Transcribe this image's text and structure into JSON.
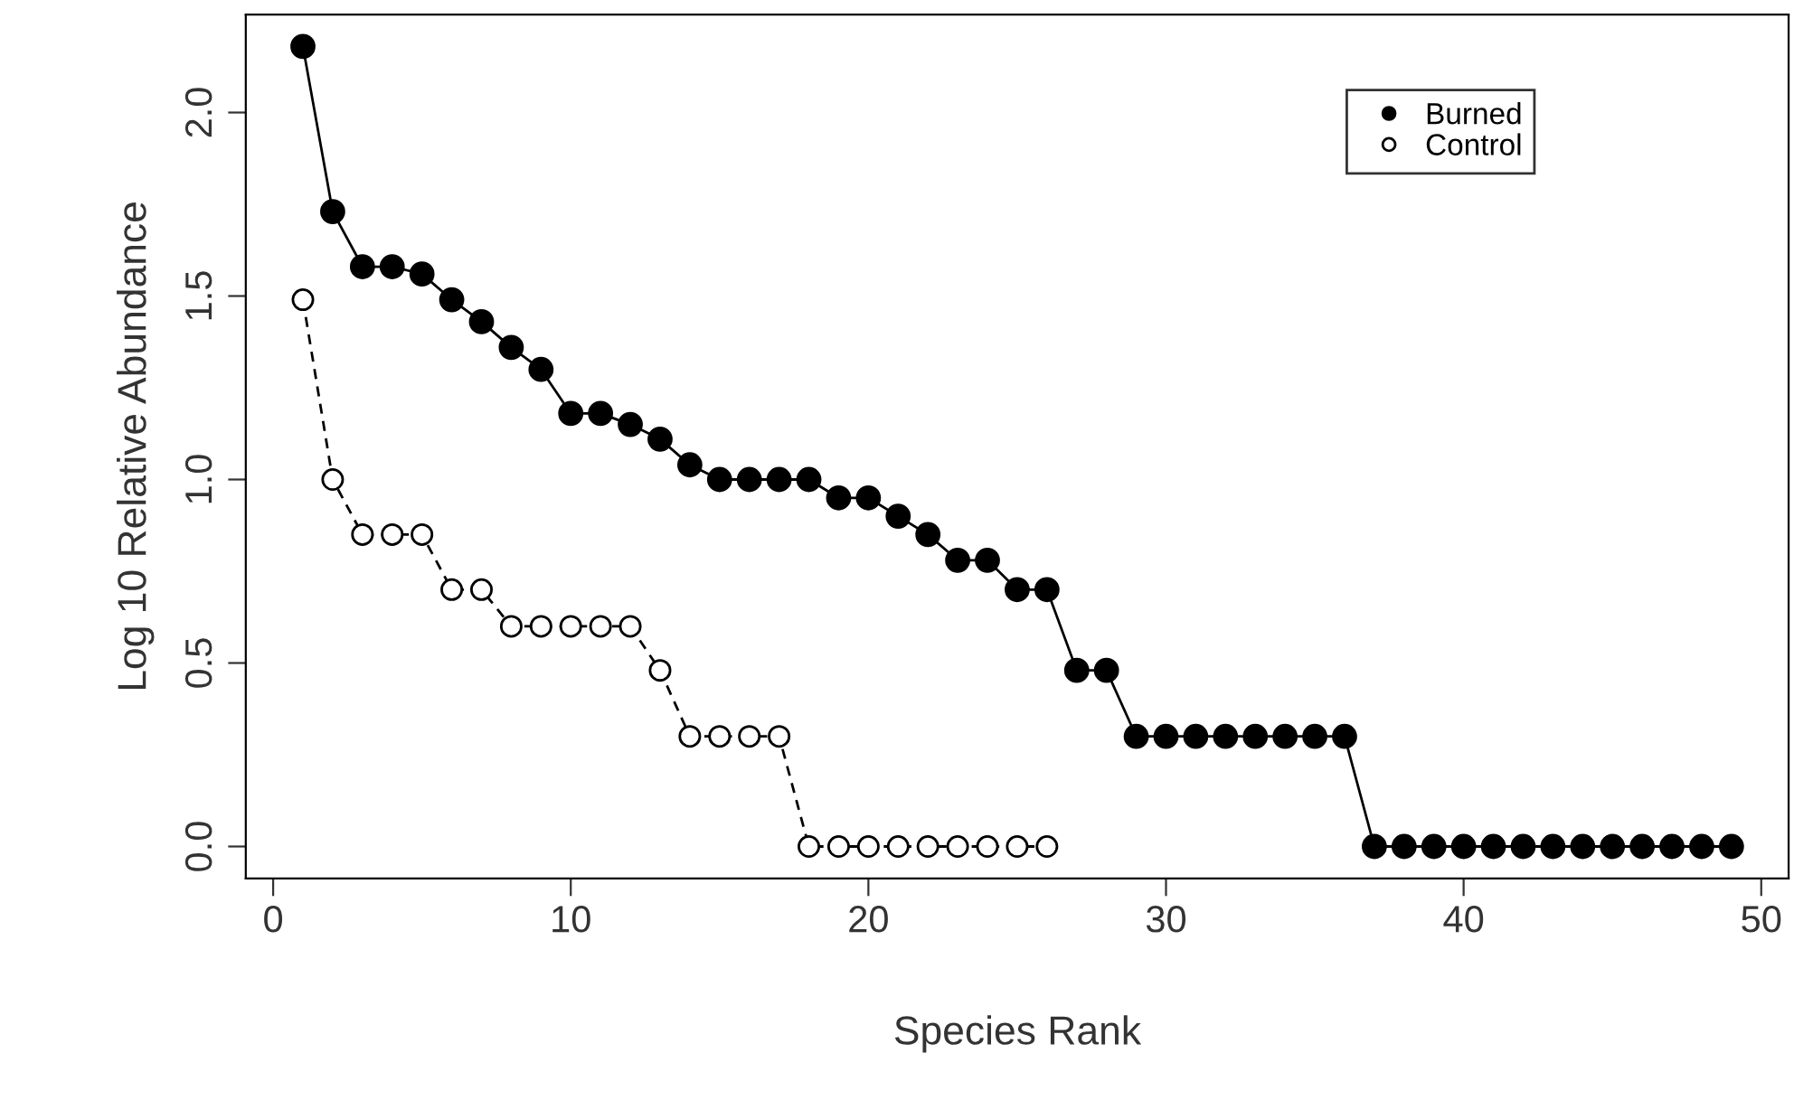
{
  "chart_data": {
    "type": "line",
    "xlabel": "Species Rank",
    "ylabel": "Log 10 Relative Abundance",
    "xlim": [
      -0.92,
      50.92
    ],
    "ylim": [
      -0.087,
      2.267
    ],
    "xticks": [
      0,
      10,
      20,
      30,
      40,
      50
    ],
    "yticks": [
      {
        "value": 0,
        "label": "0.0"
      },
      0.5,
      {
        "value": 1,
        "label": "1.0"
      },
      1.5,
      {
        "value": 2,
        "label": "2.0"
      }
    ],
    "grid": false,
    "legend": "top right",
    "marker": "circle",
    "series": [
      {
        "name": "Burned",
        "color": "#000000",
        "line_style": "solid",
        "x": [
          1,
          2,
          3,
          4,
          5,
          6,
          7,
          8,
          9,
          10,
          11,
          12,
          13,
          14,
          15,
          16,
          17,
          18,
          19,
          20,
          21,
          22,
          23,
          24,
          25,
          26,
          27,
          28,
          29,
          30,
          31,
          32,
          33,
          34,
          35,
          36,
          37,
          38,
          39,
          40,
          41,
          42,
          43,
          44,
          45,
          46,
          47,
          48,
          49
        ],
        "values": [
          2.18,
          1.73,
          1.58,
          1.58,
          1.56,
          1.49,
          1.43,
          1.36,
          1.3,
          1.18,
          1.18,
          1.15,
          1.11,
          1.04,
          1.0,
          1.0,
          1.0,
          1.0,
          0.95,
          0.95,
          0.9,
          0.85,
          0.78,
          0.78,
          0.7,
          0.7,
          0.48,
          0.48,
          0.3,
          0.3,
          0.3,
          0.3,
          0.3,
          0.3,
          0.3,
          0.3,
          0,
          0,
          0,
          0,
          0,
          0,
          0,
          0,
          0,
          0,
          0,
          0,
          0
        ]
      },
      {
        "name": "Control",
        "color": "#000000",
        "line_style": "dashed",
        "x": [
          1,
          2,
          3,
          4,
          5,
          6,
          7,
          8,
          9,
          10,
          11,
          12,
          13,
          14,
          15,
          16,
          17,
          18,
          19,
          20,
          21,
          22,
          23,
          24,
          25,
          26
        ],
        "values": [
          1.49,
          1.0,
          0.85,
          0.85,
          0.85,
          0.7,
          0.7,
          0.6,
          0.6,
          0.6,
          0.6,
          0.6,
          0.48,
          0.3,
          0.3,
          0.3,
          0.3,
          0,
          0,
          0,
          0,
          0,
          0,
          0,
          0,
          0
        ]
      }
    ]
  }
}
